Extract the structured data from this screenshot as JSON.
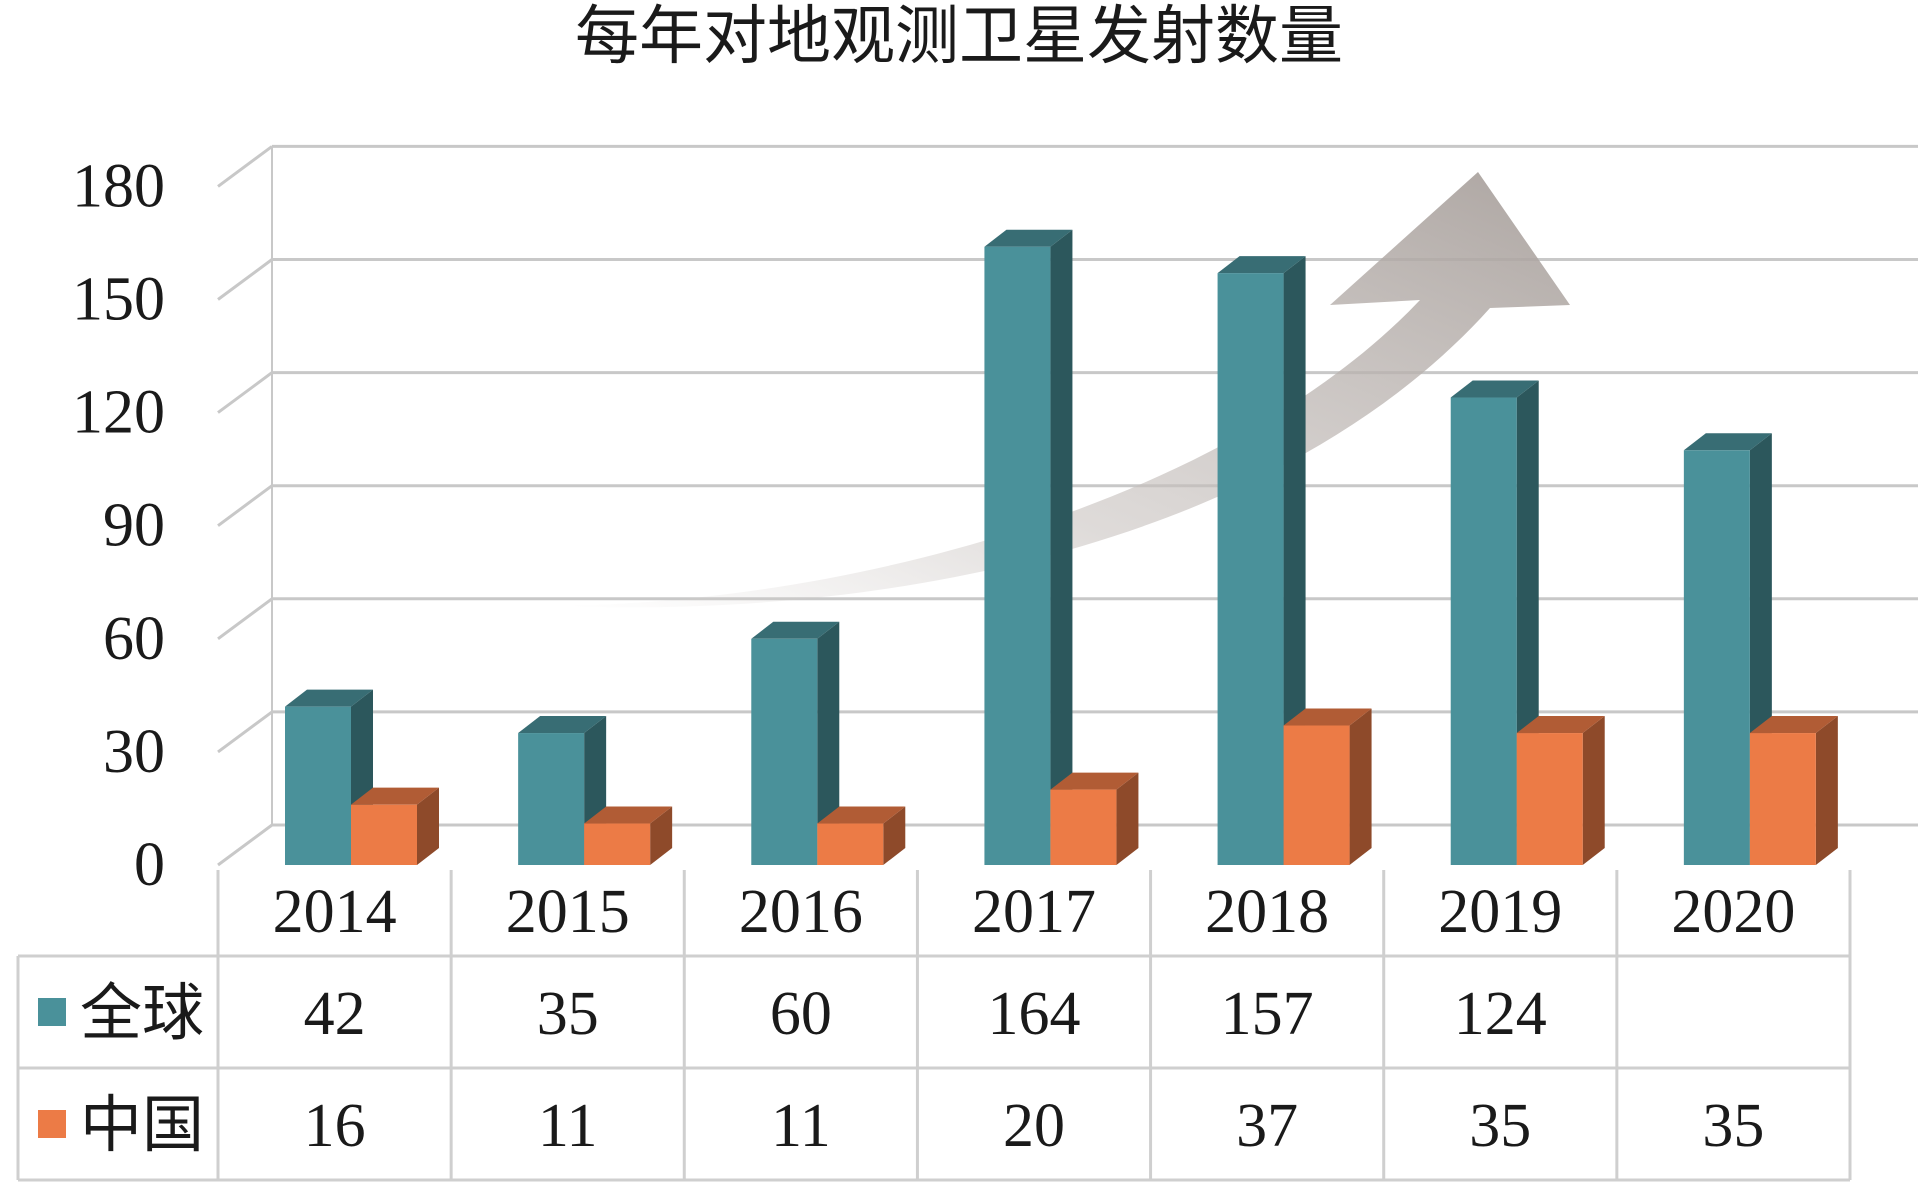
{
  "chart_data": {
    "type": "bar",
    "title": "每年对地观测卫星发射数量",
    "categories": [
      "2014",
      "2015",
      "2016",
      "2017",
      "2018",
      "2019",
      "2020"
    ],
    "series": [
      {
        "name": "全球",
        "values": [
          42,
          35,
          60,
          164,
          157,
          124,
          110
        ],
        "table_values": [
          "42",
          "35",
          "60",
          "164",
          "157",
          "124",
          ""
        ],
        "color": "#4a919a"
      },
      {
        "name": "中国",
        "values": [
          16,
          11,
          11,
          20,
          37,
          35,
          35
        ],
        "table_values": [
          "16",
          "11",
          "11",
          "20",
          "37",
          "35",
          "35"
        ],
        "color": "#ec7b46"
      }
    ],
    "yticks": [
      "0",
      "30",
      "60",
      "90",
      "120",
      "150",
      "180"
    ],
    "ylim": [
      0,
      180
    ],
    "grid": true,
    "legend": "data table",
    "annotation": "upward trend arrow"
  }
}
